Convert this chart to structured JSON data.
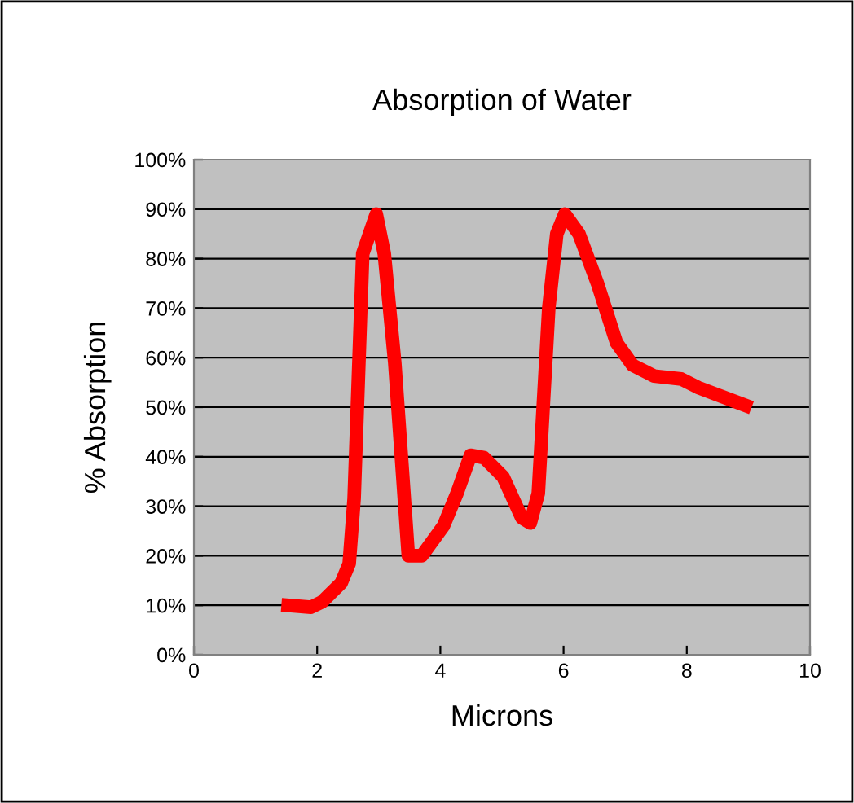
{
  "chart_data": {
    "type": "line",
    "title": "Absorption of Water",
    "xlabel": "Microns",
    "ylabel": "% Absorption",
    "xlim": [
      0,
      10
    ],
    "xticks": [
      0,
      2,
      4,
      6,
      8,
      10
    ],
    "ylim": [
      0,
      100
    ],
    "yticks": [
      {
        "value": 0,
        "label": "0%"
      },
      {
        "value": 10,
        "label": "10%"
      },
      {
        "value": 20,
        "label": "20%"
      },
      {
        "value": 30,
        "label": "30%"
      },
      {
        "value": 40,
        "label": "40%"
      },
      {
        "value": 50,
        "label": "50%"
      },
      {
        "value": 60,
        "label": "60%"
      },
      {
        "value": 70,
        "label": "70%"
      },
      {
        "value": 80,
        "label": "80%"
      },
      {
        "value": 90,
        "label": "90%"
      },
      {
        "value": 100,
        "label": "100%"
      }
    ],
    "grid": "y",
    "legend": false,
    "marker": "none",
    "line_style": "solid",
    "series": [
      {
        "color": "#ff0000",
        "x": [
          1.42,
          1.9,
          2.08,
          2.39,
          2.52,
          2.6,
          2.74,
          2.96,
          3.09,
          3.26,
          3.48,
          3.7,
          4.05,
          4.27,
          4.49,
          4.71,
          5.02,
          5.32,
          5.46,
          5.59,
          5.76,
          5.89,
          6.02,
          6.25,
          6.55,
          6.86,
          7.12,
          7.47,
          7.91,
          8.18,
          9.05
        ],
        "values": [
          10.1,
          9.6,
          10.7,
          14.5,
          18.4,
          31.5,
          81,
          89,
          81,
          59,
          20,
          20,
          26,
          32.6,
          40.3,
          39.8,
          35.9,
          27.7,
          26.6,
          32.6,
          70,
          85,
          89,
          85,
          75,
          63,
          58.5,
          56.3,
          55.7,
          54,
          49.9
        ]
      }
    ]
  }
}
